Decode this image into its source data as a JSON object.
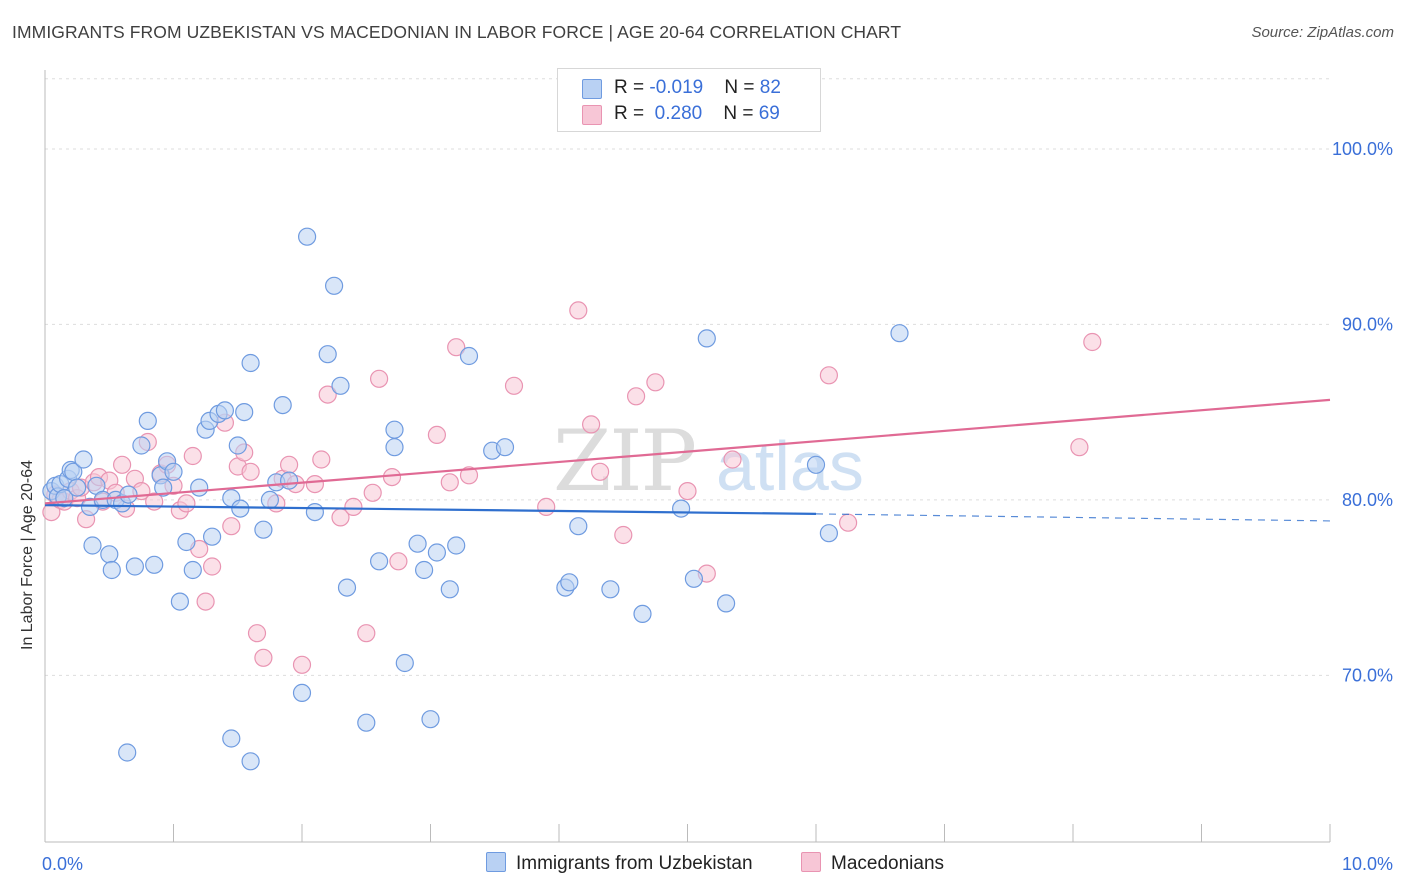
{
  "title": "IMMIGRANTS FROM UZBEKISTAN VS MACEDONIAN IN LABOR FORCE | AGE 20-64 CORRELATION CHART",
  "source": "Source: ZipAtlas.com",
  "watermark": "ZIPatlas",
  "colors": {
    "blue_fill": "#b9d1f3",
    "blue_stroke": "#6f9be0",
    "blue_line": "#2f6fce",
    "pink_fill": "#f7c6d6",
    "pink_stroke": "#e994b2",
    "pink_line": "#e06a94",
    "tick_label": "#3a6fd8",
    "grid": "#dddddd"
  },
  "legend": {
    "rows": [
      {
        "r_label": "R = ",
        "r_value": "-0.019",
        "n_label": "N = ",
        "n_value": "82"
      },
      {
        "r_label": "R = ",
        "r_value": " 0.280",
        "n_label": "N = ",
        "n_value": "69"
      }
    ]
  },
  "bottom_legend": [
    "Immigrants from Uzbekistan",
    "Macedonians"
  ],
  "chart_data": {
    "type": "scatter",
    "title": "IMMIGRANTS FROM UZBEKISTAN VS MACEDONIAN IN LABOR FORCE | AGE 20-64 CORRELATION CHART",
    "xlabel": "",
    "ylabel": "In Labor Force | Age 20-64",
    "xlim": [
      0,
      10
    ],
    "ylim": [
      60.5,
      104.5
    ],
    "x_tick_labels": [
      {
        "value": 0,
        "label": "0.0%"
      },
      {
        "value": 10,
        "label": "10.0%"
      }
    ],
    "y_ticks": [
      {
        "value": 70,
        "label": "70.0%"
      },
      {
        "value": 80,
        "label": "80.0%"
      },
      {
        "value": 90,
        "label": "90.0%"
      },
      {
        "value": 100,
        "label": "100.0%"
      }
    ],
    "grid": true,
    "series": [
      {
        "name": "Immigrants from Uzbekistan",
        "r": -0.019,
        "n": 82,
        "trend": {
          "x0": 0,
          "y0": 79.7,
          "x1": 6.0,
          "y1": 79.2,
          "dashed_to_x": 10.0,
          "dashed_to_y": 78.8
        },
        "points": [
          [
            0.05,
            80.5
          ],
          [
            0.08,
            80.8
          ],
          [
            0.1,
            80.2
          ],
          [
            0.12,
            80.9
          ],
          [
            0.15,
            80.1
          ],
          [
            0.18,
            81.2
          ],
          [
            0.2,
            81.7
          ],
          [
            0.22,
            81.6
          ],
          [
            0.25,
            80.7
          ],
          [
            0.3,
            82.3
          ],
          [
            0.35,
            79.6
          ],
          [
            0.37,
            77.4
          ],
          [
            0.4,
            80.8
          ],
          [
            0.45,
            80.0
          ],
          [
            0.5,
            76.9
          ],
          [
            0.52,
            76.0
          ],
          [
            0.55,
            80.0
          ],
          [
            0.6,
            79.8
          ],
          [
            0.65,
            80.3
          ],
          [
            0.7,
            76.2
          ],
          [
            0.75,
            83.1
          ],
          [
            0.8,
            84.5
          ],
          [
            0.85,
            76.3
          ],
          [
            0.9,
            81.4
          ],
          [
            0.92,
            80.7
          ],
          [
            0.95,
            82.2
          ],
          [
            1.0,
            81.6
          ],
          [
            1.05,
            74.2
          ],
          [
            1.1,
            77.6
          ],
          [
            1.15,
            76.0
          ],
          [
            1.2,
            80.7
          ],
          [
            1.25,
            84.0
          ],
          [
            1.28,
            84.5
          ],
          [
            1.3,
            77.9
          ],
          [
            1.35,
            84.9
          ],
          [
            1.4,
            85.1
          ],
          [
            1.45,
            80.1
          ],
          [
            1.5,
            83.1
          ],
          [
            1.52,
            79.5
          ],
          [
            1.55,
            85.0
          ],
          [
            1.6,
            87.8
          ],
          [
            1.7,
            78.3
          ],
          [
            1.75,
            80.0
          ],
          [
            1.8,
            81.0
          ],
          [
            1.85,
            85.4
          ],
          [
            1.6,
            65.1
          ],
          [
            1.45,
            66.4
          ],
          [
            0.64,
            65.6
          ],
          [
            1.9,
            81.1
          ],
          [
            2.0,
            69.0
          ],
          [
            2.1,
            79.3
          ],
          [
            2.2,
            88.3
          ],
          [
            2.3,
            86.5
          ],
          [
            2.35,
            75.0
          ],
          [
            2.5,
            67.3
          ],
          [
            2.6,
            76.5
          ],
          [
            2.72,
            84.0
          ],
          [
            2.72,
            83.0
          ],
          [
            2.8,
            70.7
          ],
          [
            2.9,
            77.5
          ],
          [
            2.95,
            76.0
          ],
          [
            3.0,
            67.5
          ],
          [
            3.05,
            77.0
          ],
          [
            3.15,
            74.9
          ],
          [
            3.2,
            77.4
          ],
          [
            3.3,
            88.2
          ],
          [
            3.48,
            82.8
          ],
          [
            3.58,
            83.0
          ],
          [
            4.05,
            75.0
          ],
          [
            4.08,
            75.3
          ],
          [
            4.15,
            78.5
          ],
          [
            4.4,
            74.9
          ],
          [
            4.65,
            73.5
          ],
          [
            4.95,
            79.5
          ],
          [
            5.05,
            75.5
          ],
          [
            5.15,
            89.2
          ],
          [
            5.3,
            74.1
          ],
          [
            6.65,
            89.5
          ],
          [
            6.0,
            82.0
          ],
          [
            6.1,
            78.1
          ],
          [
            2.04,
            95.0
          ],
          [
            2.25,
            92.2
          ]
        ]
      },
      {
        "name": "Macedonians",
        "r": 0.28,
        "n": 69,
        "trend": {
          "x0": 0,
          "y0": 79.8,
          "x1": 10.0,
          "y1": 85.7
        },
        "points": [
          [
            0.05,
            79.3
          ],
          [
            0.08,
            80.3
          ],
          [
            0.12,
            80.0
          ],
          [
            0.15,
            79.9
          ],
          [
            0.2,
            80.5
          ],
          [
            0.25,
            80.1
          ],
          [
            0.28,
            80.7
          ],
          [
            0.32,
            78.9
          ],
          [
            0.38,
            81.0
          ],
          [
            0.42,
            81.3
          ],
          [
            0.45,
            79.9
          ],
          [
            0.5,
            81.1
          ],
          [
            0.55,
            80.4
          ],
          [
            0.6,
            82.0
          ],
          [
            0.63,
            79.5
          ],
          [
            0.7,
            81.2
          ],
          [
            0.75,
            80.5
          ],
          [
            0.8,
            83.3
          ],
          [
            0.85,
            79.9
          ],
          [
            0.9,
            81.5
          ],
          [
            0.95,
            82.0
          ],
          [
            1.0,
            80.8
          ],
          [
            1.05,
            79.4
          ],
          [
            1.1,
            79.8
          ],
          [
            1.15,
            82.5
          ],
          [
            1.2,
            77.2
          ],
          [
            1.25,
            74.2
          ],
          [
            1.3,
            76.2
          ],
          [
            1.4,
            84.4
          ],
          [
            1.45,
            78.5
          ],
          [
            1.5,
            81.9
          ],
          [
            1.55,
            82.7
          ],
          [
            1.6,
            81.6
          ],
          [
            1.65,
            72.4
          ],
          [
            1.7,
            71.0
          ],
          [
            1.8,
            79.8
          ],
          [
            1.85,
            81.2
          ],
          [
            1.9,
            82.0
          ],
          [
            1.95,
            80.9
          ],
          [
            2.0,
            70.6
          ],
          [
            2.1,
            80.9
          ],
          [
            2.15,
            82.3
          ],
          [
            2.2,
            86.0
          ],
          [
            2.3,
            79.0
          ],
          [
            2.4,
            79.6
          ],
          [
            2.5,
            72.4
          ],
          [
            2.55,
            80.4
          ],
          [
            2.6,
            86.9
          ],
          [
            2.7,
            81.3
          ],
          [
            2.75,
            76.5
          ],
          [
            3.05,
            83.7
          ],
          [
            3.15,
            81.0
          ],
          [
            3.2,
            88.7
          ],
          [
            3.3,
            81.4
          ],
          [
            3.65,
            86.5
          ],
          [
            3.9,
            79.6
          ],
          [
            4.15,
            90.8
          ],
          [
            4.25,
            84.3
          ],
          [
            4.32,
            81.6
          ],
          [
            4.5,
            78.0
          ],
          [
            4.6,
            85.9
          ],
          [
            4.75,
            86.7
          ],
          [
            5.0,
            80.5
          ],
          [
            5.15,
            75.8
          ],
          [
            5.35,
            82.3
          ],
          [
            6.1,
            87.1
          ],
          [
            6.25,
            78.7
          ],
          [
            8.15,
            89.0
          ],
          [
            8.05,
            83.0
          ]
        ]
      }
    ]
  }
}
